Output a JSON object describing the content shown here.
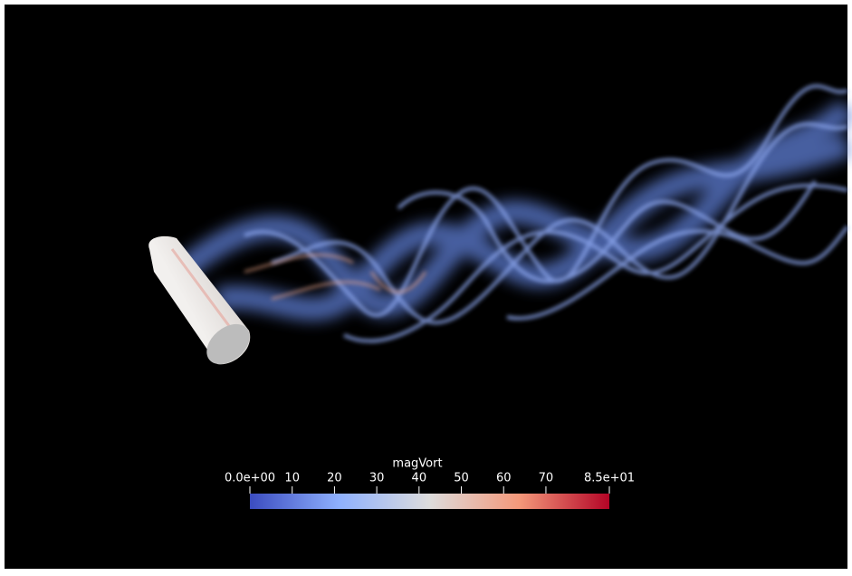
{
  "colorbar": {
    "title": "magVort",
    "range": [
      0,
      85
    ],
    "ticks": [
      {
        "value": 0,
        "label": "0.0e+00"
      },
      10,
      20,
      30,
      40,
      50,
      60,
      70,
      {
        "value": 85,
        "label": "8.5e+01"
      }
    ],
    "colormap": [
      "#3b4cc0",
      "#8fb1fe",
      "#dddcdc",
      "#f4987a",
      "#b40426"
    ]
  }
}
